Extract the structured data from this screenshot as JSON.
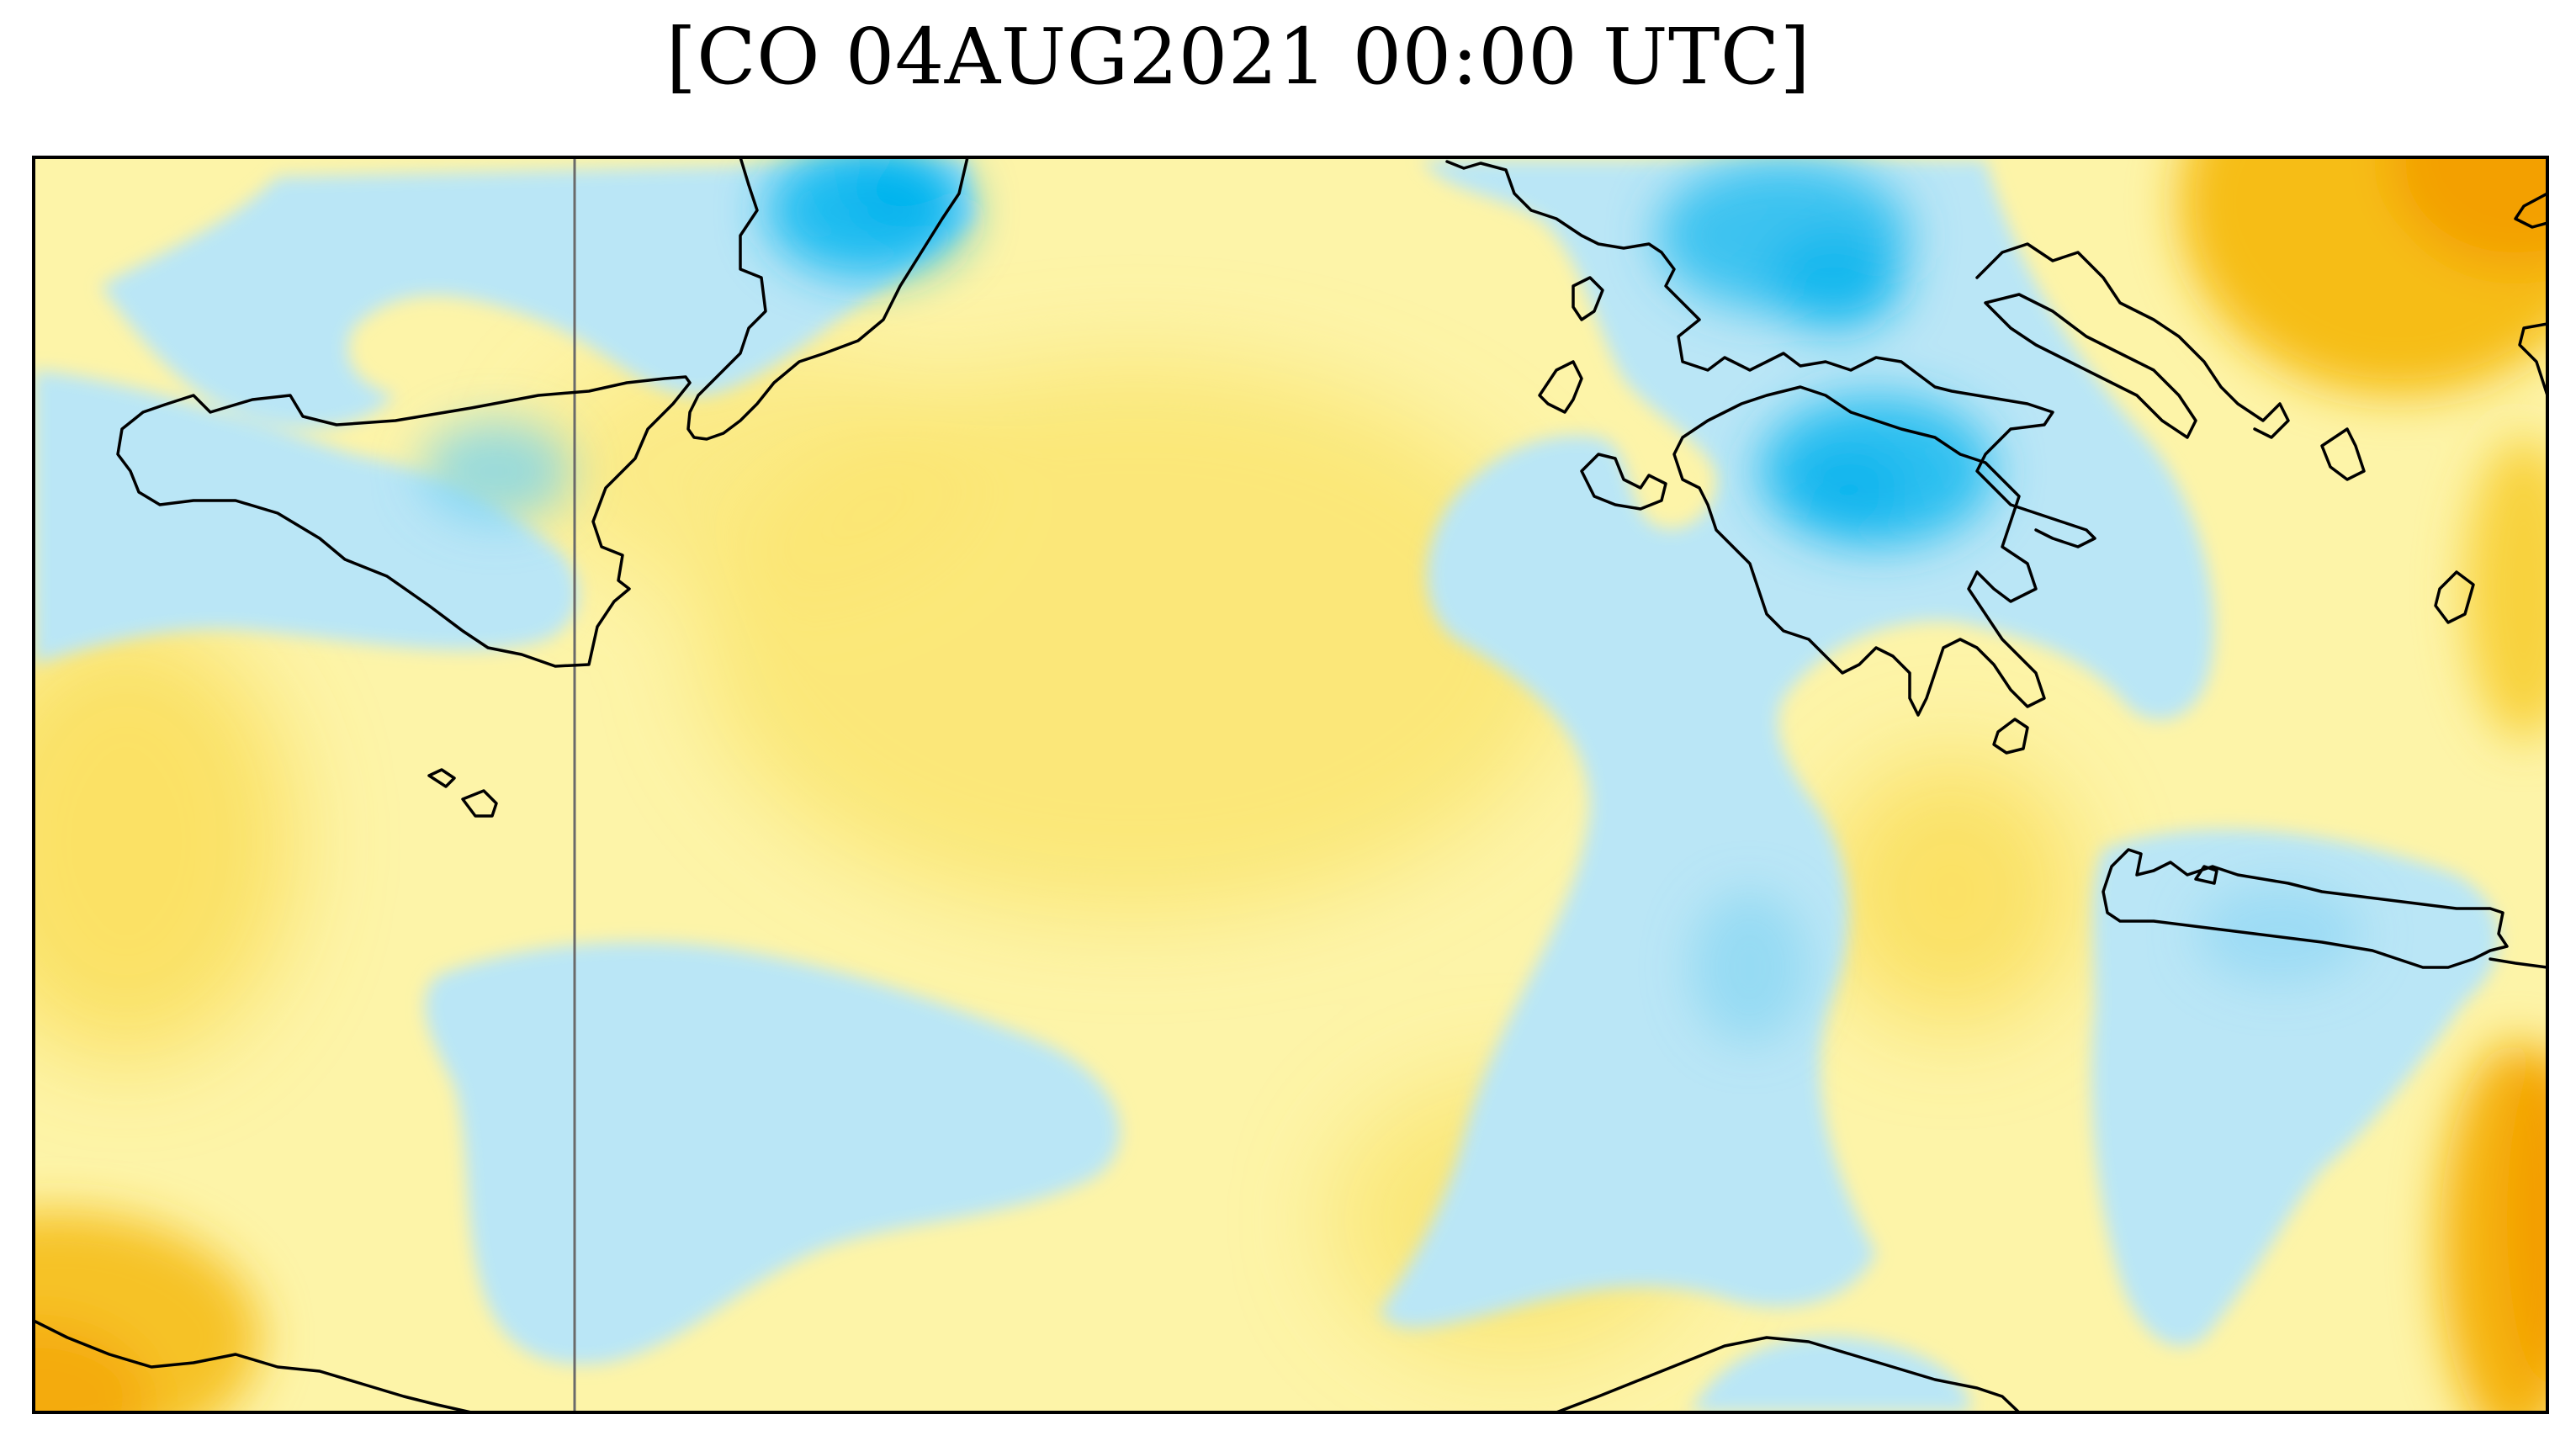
{
  "figure": {
    "title": "[CO 04AUG2021 00:00 UTC]"
  },
  "colors": {
    "low_strong": "#00b6f0",
    "low": "#b9e5f6",
    "mid": "#fdf6b0",
    "high_light": "#fae56a",
    "high": "#f7c21b",
    "high_strong": "#f39c00",
    "coastline": "#000000",
    "meridian_line": "#666666",
    "frame": "#000000"
  }
}
